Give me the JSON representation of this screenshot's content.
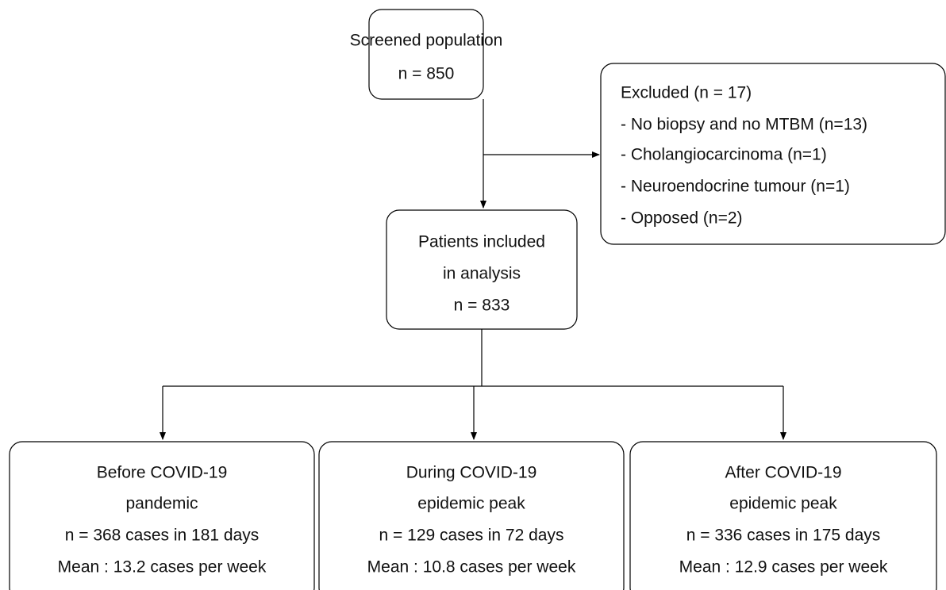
{
  "nodes": [
    {
      "lines": [
        "Screened population",
        "n = 850"
      ]
    },
    {
      "lines": [
        "Excluded (n = 17)",
        "- No biopsy and no MTBM (n=13)",
        "- Cholangiocarcinoma (n=1)",
        "- Neuroendocrine tumour (n=1)",
        "- Opposed (n=2)"
      ]
    },
    {
      "lines": [
        "Patients included",
        "in analysis",
        "n = 833"
      ]
    },
    {
      "lines": [
        "Before COVID-19",
        "pandemic",
        "n = 368 cases in 181 days",
        "Mean : 13.2 cases per week"
      ]
    },
    {
      "lines": [
        "During COVID-19",
        "epidemic peak",
        "n = 129 cases in 72 days",
        "Mean : 10.8 cases per week"
      ]
    },
    {
      "lines": [
        "After COVID-19",
        "epidemic peak",
        "n = 336 cases in 175 days",
        "Mean : 12.9 cases per week"
      ]
    }
  ]
}
